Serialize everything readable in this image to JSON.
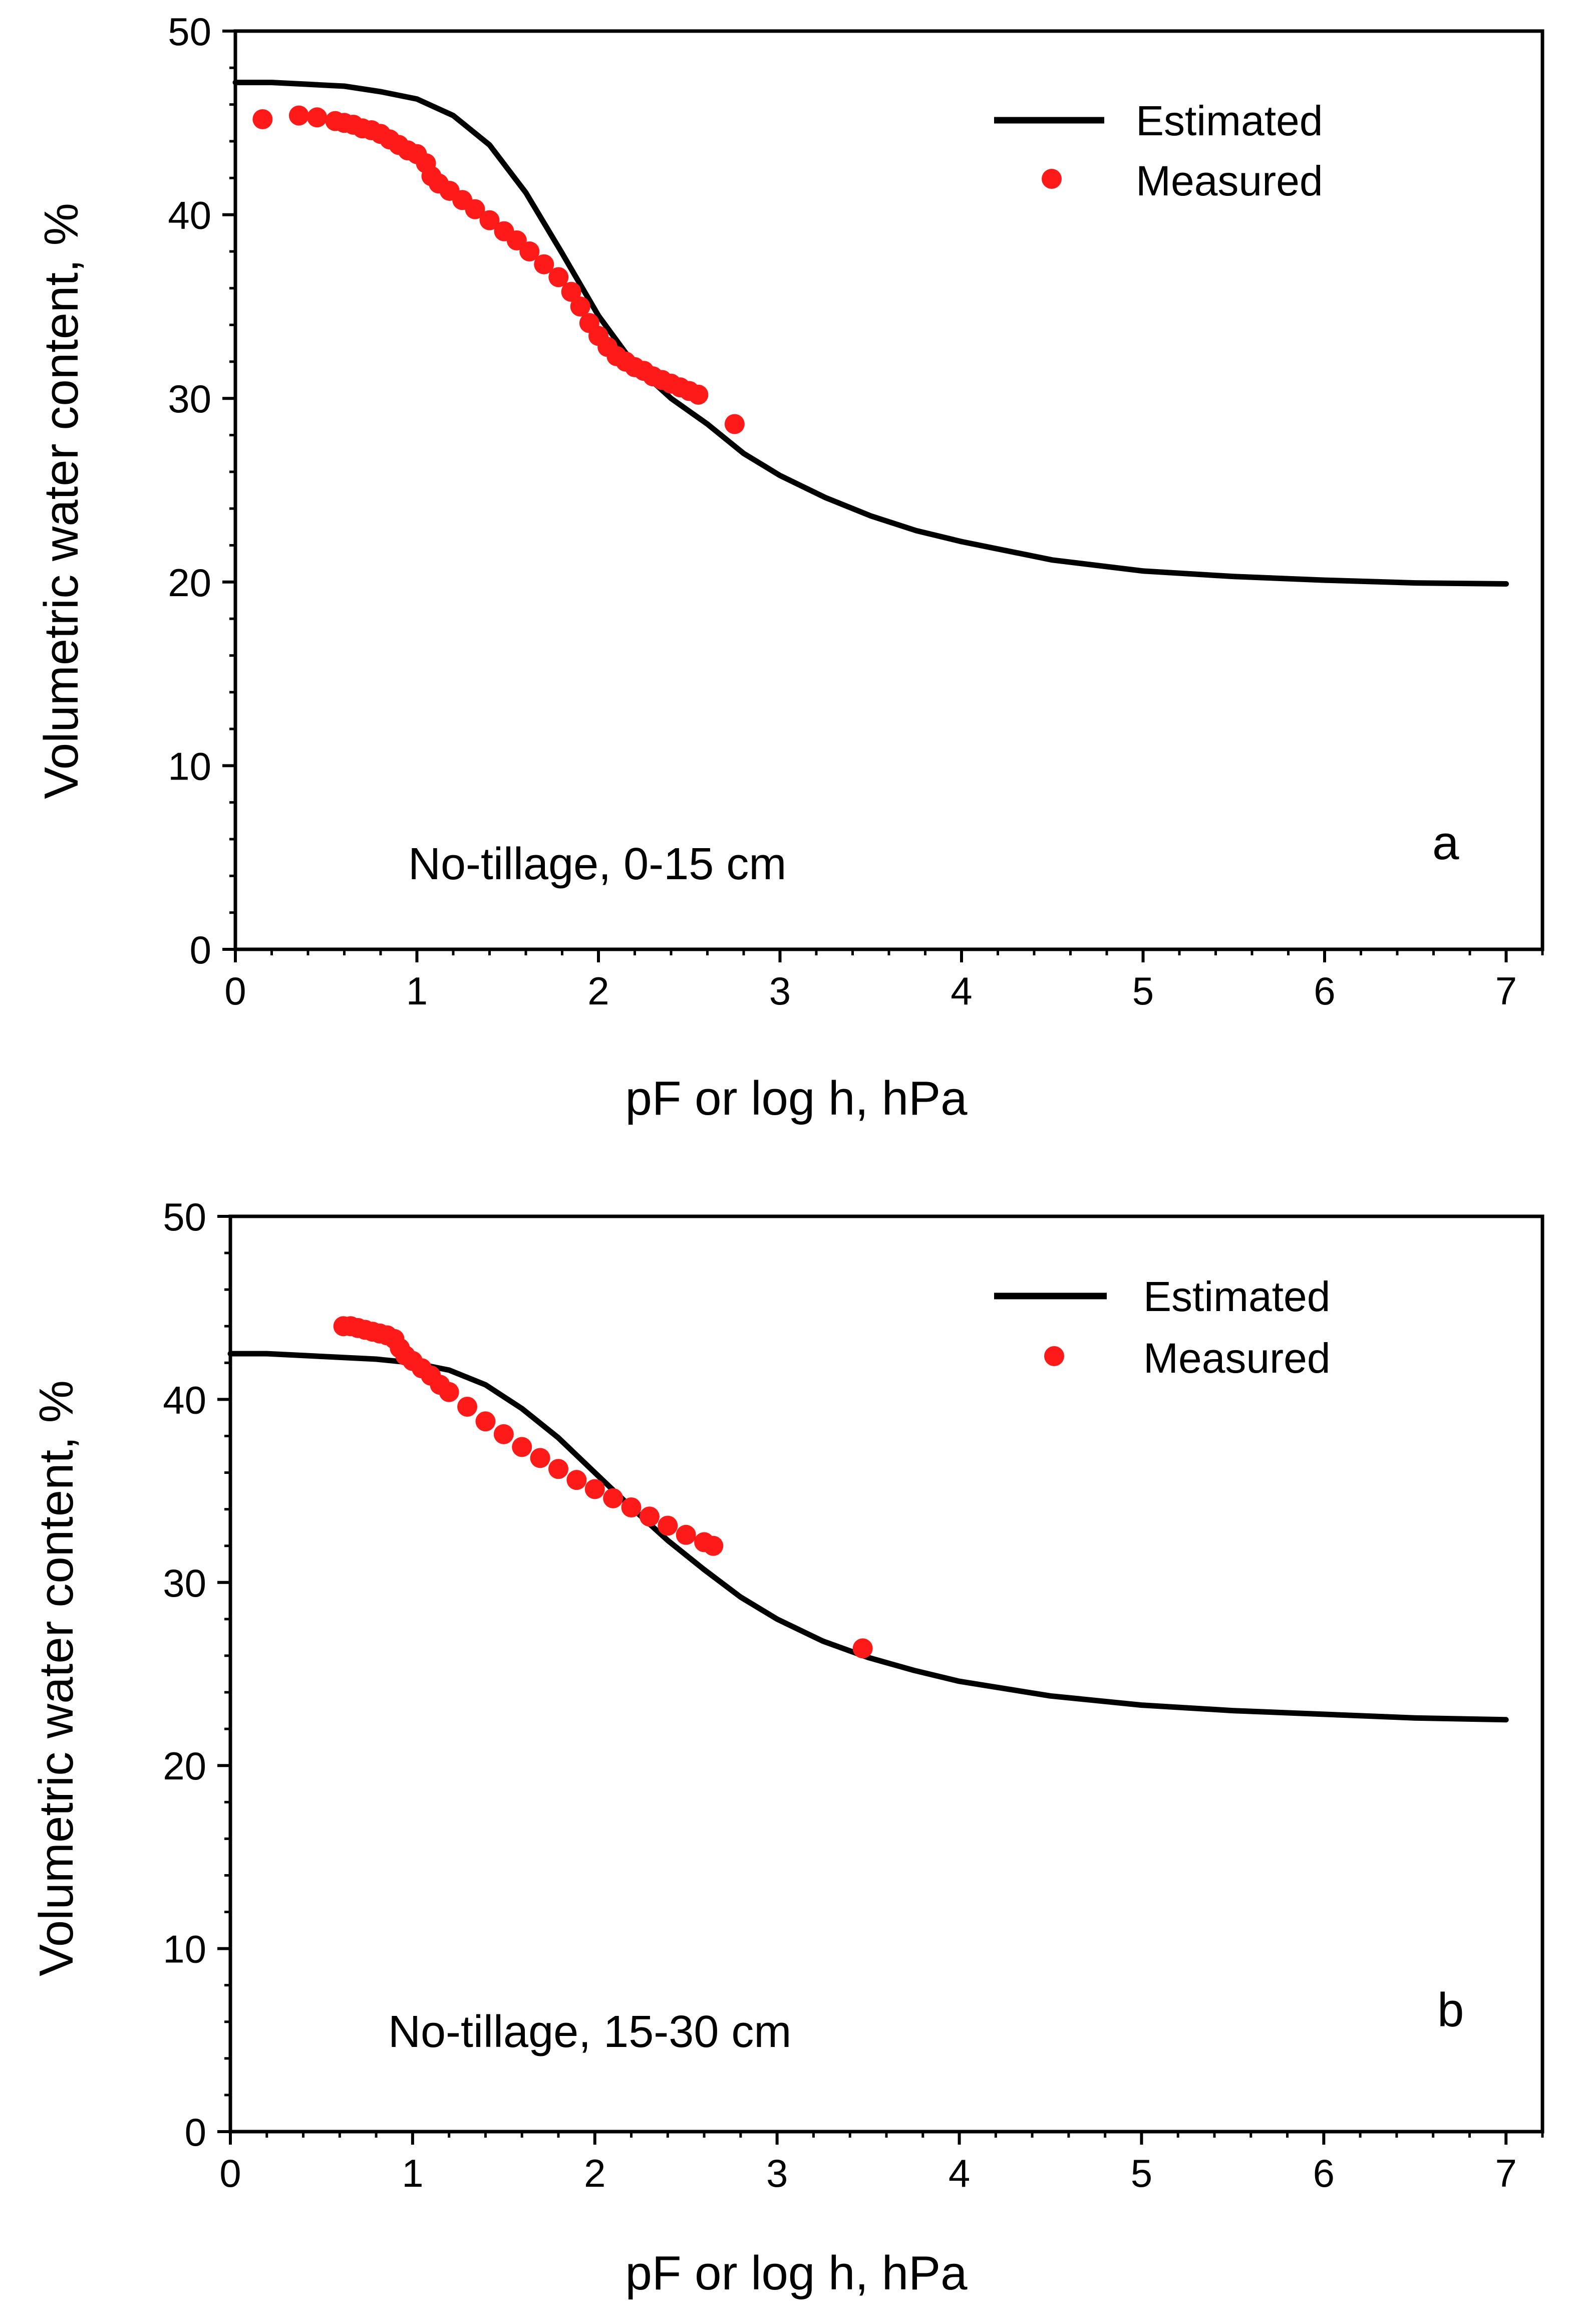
{
  "figure": {
    "description_free": true
  },
  "colors": {
    "estimated": "#000000",
    "measured": "#ff1a1a",
    "axes": "#000000",
    "background": "#ffffff"
  },
  "chart_data": [
    {
      "type": "scatter",
      "panel_letter": "a",
      "annotation": "No-tillage, 0-15 cm",
      "xlabel": "pF or log h, hPa",
      "ylabel": "Volumetric water content, %",
      "xlim": [
        0,
        7.2
      ],
      "ylim": [
        0,
        50
      ],
      "xticks": [
        0,
        1,
        2,
        3,
        4,
        5,
        6,
        7
      ],
      "yticks": [
        0,
        10,
        20,
        30,
        40,
        50
      ],
      "xtick_labels": [
        "0",
        "1",
        "2",
        "3",
        "4",
        "5",
        "6",
        "7"
      ],
      "ytick_labels": [
        "0",
        "10",
        "20",
        "30",
        "40",
        "50"
      ],
      "legend": {
        "position": "top-right",
        "entries": [
          {
            "label": "Estimated",
            "marker": "line"
          },
          {
            "label": "Measured",
            "marker": "dot"
          }
        ]
      },
      "series": [
        {
          "name": "Estimated",
          "kind": "line",
          "x": [
            0,
            0.2,
            0.4,
            0.6,
            0.8,
            1.0,
            1.2,
            1.4,
            1.6,
            1.8,
            2.0,
            2.2,
            2.4,
            2.6,
            2.8,
            3.0,
            3.25,
            3.5,
            3.75,
            4.0,
            4.5,
            5.0,
            5.5,
            6.0,
            6.5,
            7.0
          ],
          "y": [
            47.2,
            47.2,
            47.1,
            47.0,
            46.7,
            46.3,
            45.4,
            43.8,
            41.2,
            37.9,
            34.5,
            31.8,
            30.0,
            28.6,
            27.0,
            25.8,
            24.6,
            23.6,
            22.8,
            22.2,
            21.2,
            20.6,
            20.3,
            20.1,
            19.95,
            19.9
          ]
        },
        {
          "name": "Measured",
          "kind": "scatter",
          "x": [
            0.15,
            0.35,
            0.45,
            0.55,
            0.6,
            0.65,
            0.7,
            0.75,
            0.8,
            0.85,
            0.9,
            0.95,
            1.0,
            1.05,
            1.08,
            1.12,
            1.18,
            1.25,
            1.32,
            1.4,
            1.48,
            1.55,
            1.62,
            1.7,
            1.78,
            1.85,
            1.9,
            1.95,
            2.0,
            2.05,
            2.1,
            2.15,
            2.2,
            2.25,
            2.3,
            2.35,
            2.4,
            2.45,
            2.5,
            2.55,
            2.75
          ],
          "y": [
            45.2,
            45.4,
            45.3,
            45.1,
            45.0,
            44.9,
            44.7,
            44.6,
            44.4,
            44.1,
            43.8,
            43.5,
            43.3,
            42.8,
            42.1,
            41.7,
            41.3,
            40.8,
            40.3,
            39.7,
            39.1,
            38.6,
            38.0,
            37.3,
            36.6,
            35.8,
            35.0,
            34.1,
            33.4,
            32.8,
            32.3,
            32.0,
            31.7,
            31.5,
            31.2,
            31.0,
            30.8,
            30.6,
            30.4,
            30.2,
            28.6
          ]
        }
      ]
    },
    {
      "type": "scatter",
      "panel_letter": "b",
      "annotation": "No-tillage, 15-30 cm",
      "xlabel": "pF or log h, hPa",
      "ylabel": "Volumetric water content, %",
      "xlim": [
        0,
        7.2
      ],
      "ylim": [
        0,
        50
      ],
      "xticks": [
        0,
        1,
        2,
        3,
        4,
        5,
        6,
        7
      ],
      "yticks": [
        0,
        10,
        20,
        30,
        40,
        50
      ],
      "xtick_labels": [
        "0",
        "1",
        "2",
        "3",
        "4",
        "5",
        "6",
        "7"
      ],
      "ytick_labels": [
        "0",
        "10",
        "20",
        "30",
        "40",
        "50"
      ],
      "legend": {
        "position": "top-right",
        "entries": [
          {
            "label": "Estimated",
            "marker": "line"
          },
          {
            "label": "Measured",
            "marker": "dot"
          }
        ]
      },
      "series": [
        {
          "name": "Estimated",
          "kind": "line",
          "x": [
            0,
            0.2,
            0.4,
            0.6,
            0.8,
            1.0,
            1.2,
            1.4,
            1.6,
            1.8,
            2.0,
            2.2,
            2.4,
            2.6,
            2.8,
            3.0,
            3.25,
            3.5,
            3.75,
            4.0,
            4.5,
            5.0,
            5.5,
            6.0,
            6.5,
            7.0
          ],
          "y": [
            42.5,
            42.5,
            42.4,
            42.3,
            42.2,
            42.0,
            41.6,
            40.8,
            39.5,
            37.9,
            36.0,
            34.1,
            32.3,
            30.7,
            29.2,
            28.0,
            26.8,
            25.9,
            25.2,
            24.6,
            23.8,
            23.3,
            23.0,
            22.8,
            22.6,
            22.5
          ]
        },
        {
          "name": "Measured",
          "kind": "scatter",
          "x": [
            0.62,
            0.66,
            0.7,
            0.74,
            0.78,
            0.82,
            0.86,
            0.9,
            0.93,
            0.96,
            1.0,
            1.05,
            1.1,
            1.15,
            1.2,
            1.3,
            1.4,
            1.5,
            1.6,
            1.7,
            1.8,
            1.9,
            2.0,
            2.1,
            2.2,
            2.3,
            2.4,
            2.5,
            2.6,
            2.65,
            3.47
          ],
          "y": [
            44.0,
            44.0,
            43.9,
            43.8,
            43.7,
            43.6,
            43.5,
            43.3,
            42.8,
            42.4,
            42.1,
            41.7,
            41.3,
            40.8,
            40.4,
            39.6,
            38.8,
            38.1,
            37.4,
            36.8,
            36.2,
            35.6,
            35.1,
            34.6,
            34.1,
            33.6,
            33.1,
            32.6,
            32.2,
            32.0,
            26.4
          ]
        }
      ]
    }
  ]
}
